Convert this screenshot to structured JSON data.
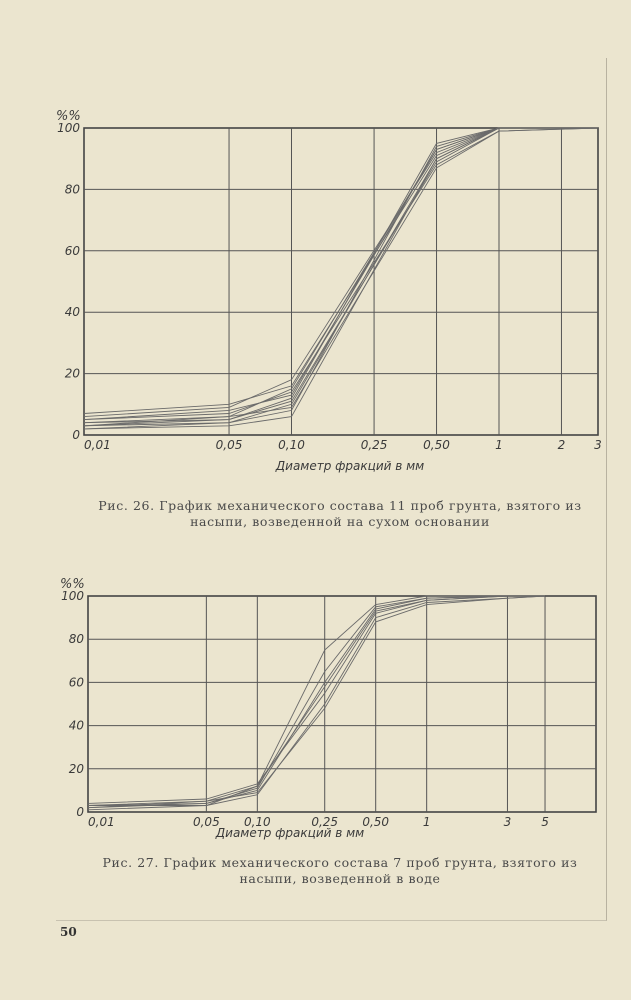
{
  "chart_data": [
    {
      "type": "line",
      "ylabel": "%%",
      "xlabel": "Диаметр фракций в мм",
      "x_tick_labels": [
        "0,01",
        "0,05",
        "0,10",
        "0,25",
        "0,50",
        "1",
        "2",
        "3"
      ],
      "y_tick_labels": [
        "0",
        "20",
        "40",
        "60",
        "80",
        "100"
      ],
      "ylim": [
        0,
        100
      ],
      "grid": true,
      "x_scale": "log",
      "x": [
        0.01,
        0.05,
        0.1,
        0.5,
        1,
        3
      ],
      "series": [
        {
          "values": [
            3,
            5,
            12,
            95,
            100,
            100
          ]
        },
        {
          "values": [
            4,
            6,
            15,
            93,
            100,
            100
          ]
        },
        {
          "values": [
            6,
            9,
            18,
            92,
            100,
            100
          ]
        },
        {
          "values": [
            2,
            4,
            10,
            90,
            100,
            100
          ]
        },
        {
          "values": [
            5,
            7,
            14,
            88,
            99,
            100
          ]
        },
        {
          "values": [
            3,
            4,
            8,
            94,
            100,
            100
          ]
        },
        {
          "values": [
            7,
            10,
            16,
            91,
            100,
            100
          ]
        },
        {
          "values": [
            4,
            5,
            11,
            89,
            100,
            100
          ]
        },
        {
          "values": [
            2,
            3,
            6,
            90,
            100,
            100
          ]
        },
        {
          "values": [
            5,
            8,
            13,
            93,
            100,
            100
          ]
        },
        {
          "values": [
            3,
            6,
            9,
            87,
            99,
            100
          ]
        }
      ]
    },
    {
      "type": "line",
      "ylabel": "%%",
      "xlabel": "Диаметр фракций в мм",
      "x_tick_labels": [
        "0,01",
        "0,05",
        "0,10",
        "0,25",
        "0,50",
        "1",
        "3",
        "5"
      ],
      "y_tick_labels": [
        "0",
        "20",
        "40",
        "60",
        "80",
        "100"
      ],
      "ylim": [
        0,
        100
      ],
      "grid": true,
      "x_scale": "log",
      "x": [
        0.01,
        0.05,
        0.1,
        0.25,
        0.5,
        1,
        3,
        5
      ],
      "series": [
        {
          "values": [
            3,
            5,
            12,
            75,
            96,
            100,
            100,
            100
          ]
        },
        {
          "values": [
            2,
            4,
            10,
            60,
            94,
            99,
            100,
            100
          ]
        },
        {
          "values": [
            4,
            6,
            13,
            55,
            92,
            98,
            100,
            100
          ]
        },
        {
          "values": [
            1,
            3,
            8,
            50,
            90,
            97,
            99,
            100
          ]
        },
        {
          "values": [
            3,
            4,
            11,
            65,
            95,
            99,
            100,
            100
          ]
        },
        {
          "values": [
            2,
            5,
            9,
            48,
            88,
            96,
            99,
            100
          ]
        },
        {
          "values": [
            3,
            3,
            12,
            58,
            93,
            98,
            100,
            100
          ]
        }
      ]
    }
  ],
  "captions": {
    "fig26": "Рис. 26. График механического состава 11 проб грунта, взятого из насыпи, возведенной на сухом основании",
    "fig27": "Рис. 27. График механического состава 7 проб грунта, взятого из насыпи, возведенной в воде"
  },
  "page_number": "50"
}
